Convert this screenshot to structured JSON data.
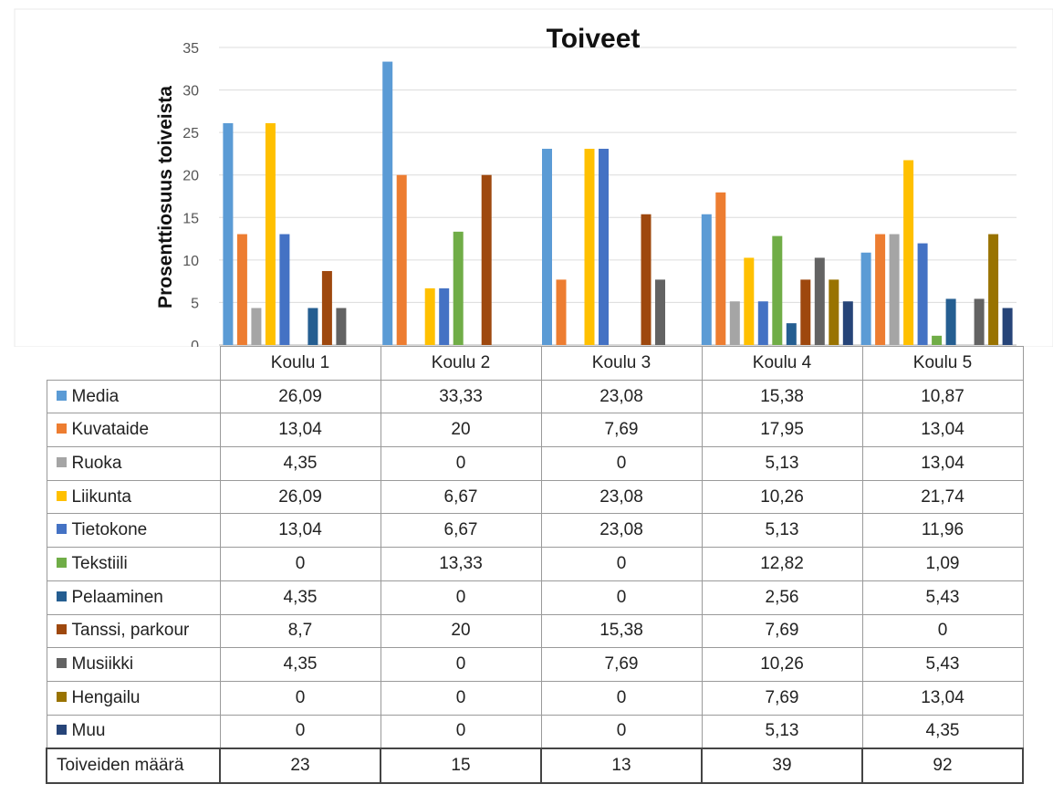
{
  "chart_data": {
    "type": "bar",
    "title": "Toiveet",
    "ylabel": "Prosenttiosuus toiveista",
    "xlabel": "",
    "ylim": [
      0,
      35
    ],
    "yticks": [
      "0",
      "5",
      "10",
      "15",
      "20",
      "25",
      "30",
      "35"
    ],
    "grid": true,
    "legend": "table",
    "categories": [
      "Koulu 1",
      "Koulu 2",
      "Koulu 3",
      "Koulu 4",
      "Koulu 5"
    ],
    "series": [
      {
        "name": "Media",
        "color": "#5b9bd5",
        "values": [
          26.09,
          33.33,
          23.08,
          15.38,
          10.87
        ],
        "labels": [
          "26,09",
          "33,33",
          "23,08",
          "15,38",
          "10,87"
        ]
      },
      {
        "name": "Kuvataide",
        "color": "#ed7d31",
        "values": [
          13.04,
          20,
          7.69,
          17.95,
          13.04
        ],
        "labels": [
          "13,04",
          "20",
          "7,69",
          "17,95",
          "13,04"
        ]
      },
      {
        "name": "Ruoka",
        "color": "#a5a5a5",
        "values": [
          4.35,
          0,
          0,
          5.13,
          13.04
        ],
        "labels": [
          "4,35",
          "0",
          "0",
          "5,13",
          "13,04"
        ]
      },
      {
        "name": "Liikunta",
        "color": "#ffc000",
        "values": [
          26.09,
          6.67,
          23.08,
          10.26,
          21.74
        ],
        "labels": [
          "26,09",
          "6,67",
          "23,08",
          "10,26",
          "21,74"
        ]
      },
      {
        "name": "Tietokone",
        "color": "#4472c4",
        "values": [
          13.04,
          6.67,
          23.08,
          5.13,
          11.96
        ],
        "labels": [
          "13,04",
          "6,67",
          "23,08",
          "5,13",
          "11,96"
        ]
      },
      {
        "name": "Tekstiili",
        "color": "#70ad47",
        "values": [
          0,
          13.33,
          0,
          12.82,
          1.09
        ],
        "labels": [
          "0",
          "13,33",
          "0",
          "12,82",
          "1,09"
        ]
      },
      {
        "name": "Pelaaminen",
        "color": "#255e91",
        "values": [
          4.35,
          0,
          0,
          2.56,
          5.43
        ],
        "labels": [
          "4,35",
          "0",
          "0",
          "2,56",
          "5,43"
        ]
      },
      {
        "name": "Tanssi, parkour",
        "color": "#9e480e",
        "values": [
          8.7,
          20,
          15.38,
          7.69,
          0
        ],
        "labels": [
          "8,7",
          "20",
          "15,38",
          "7,69",
          "0"
        ]
      },
      {
        "name": "Musiikki",
        "color": "#636363",
        "values": [
          4.35,
          0,
          7.69,
          10.26,
          5.43
        ],
        "labels": [
          "4,35",
          "0",
          "7,69",
          "10,26",
          "5,43"
        ]
      },
      {
        "name": "Hengailu",
        "color": "#997300",
        "values": [
          0,
          0,
          0,
          7.69,
          13.04
        ],
        "labels": [
          "0",
          "0",
          "0",
          "7,69",
          "13,04"
        ]
      },
      {
        "name": "Muu",
        "color": "#264478",
        "values": [
          0,
          0,
          0,
          5.13,
          4.35
        ],
        "labels": [
          "0",
          "0",
          "0",
          "5,13",
          "4,35"
        ]
      }
    ],
    "totals": {
      "label": "Toiveiden määrä",
      "values": [
        "23",
        "15",
        "13",
        "39",
        "92"
      ]
    }
  }
}
